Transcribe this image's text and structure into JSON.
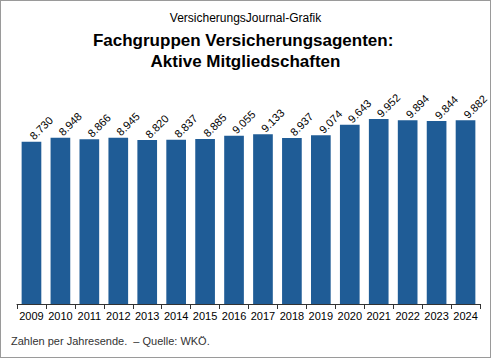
{
  "chart_data": {
    "type": "bar",
    "subtitle": "VersicherungsJournal-Grafik",
    "title": "Fachgruppen Versicherungsagenten: Aktive Mitgliedschaften",
    "annotations": [
      "Zahlen per Jahresende.  – Quelle: WKÖ."
    ],
    "categories": [
      "2009",
      "2010",
      "2011",
      "2012",
      "2013",
      "2014",
      "2015",
      "2016",
      "2017",
      "2018",
      "2019",
      "2020",
      "2021",
      "2022",
      "2023",
      "2024"
    ],
    "values": [
      8730,
      8948,
      8866,
      8945,
      8820,
      8837,
      8885,
      9055,
      9133,
      8937,
      9074,
      9643,
      9952,
      9894,
      9844,
      9882
    ],
    "value_labels": [
      "8.730",
      "8.948",
      "8.866",
      "8.945",
      "8.820",
      "8.837",
      "8.885",
      "9.055",
      "9.133",
      "8.937",
      "9.074",
      "9.643",
      "9.952",
      "9.894",
      "9.844",
      "9.882"
    ],
    "color": "#1f5c96",
    "ylim": [
      0,
      12000
    ],
    "yticks": [
      0,
      12000
    ],
    "grid": false,
    "data_labels": true,
    "tick_labels": "x"
  }
}
